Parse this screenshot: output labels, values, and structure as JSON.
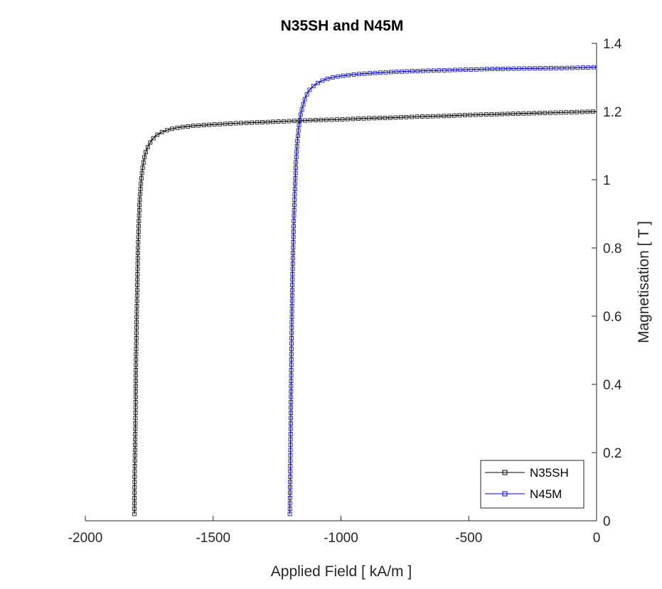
{
  "chart_data": {
    "type": "line",
    "title": "N35SH and N45M",
    "xlabel": "Applied Field [ kA/m ]",
    "ylabel": "Magnetisation [ T ]",
    "xlim": [
      -2000,
      0
    ],
    "ylim": [
      0,
      1.4
    ],
    "xticks": [
      -2000,
      -1500,
      -1000,
      -500,
      0
    ],
    "xtick_labels": [
      "-2000",
      "-1500",
      "-1000",
      "-500",
      "0"
    ],
    "yticks": [
      0,
      0.2,
      0.4,
      0.6,
      0.8,
      1,
      1.2,
      1.4
    ],
    "ytick_labels": [
      "0",
      "0.2",
      "0.4",
      "0.6",
      "0.8",
      "1",
      "1.2",
      "1.4"
    ],
    "y_axis_location": "right",
    "grid": false,
    "legend_placement": "bottom-right",
    "marker": "square",
    "series": [
      {
        "name": "N35SH",
        "color": "#000000",
        "x": [
          -1808,
          -1807,
          -1805,
          -1803,
          -1802,
          -1800,
          -1798,
          -1796,
          -1794,
          -1791,
          -1788,
          -1784,
          -1780,
          -1775,
          -1769,
          -1762,
          -1752,
          -1740,
          -1723,
          -1700,
          -1670,
          -1630,
          -1580,
          -1500,
          -1400,
          -1300,
          -1200,
          -1100,
          -1000,
          -900,
          -800,
          -700,
          -600,
          -500,
          -400,
          -300,
          -200,
          -100,
          0
        ],
        "y": [
          0.02,
          0.13,
          0.24,
          0.35,
          0.46,
          0.555,
          0.64,
          0.72,
          0.8,
          0.87,
          0.93,
          0.975,
          1.01,
          1.04,
          1.065,
          1.085,
          1.102,
          1.117,
          1.13,
          1.14,
          1.148,
          1.154,
          1.158,
          1.162,
          1.166,
          1.169,
          1.172,
          1.175,
          1.177,
          1.18,
          1.182,
          1.185,
          1.187,
          1.19,
          1.192,
          1.194,
          1.196,
          1.198,
          1.2
        ]
      },
      {
        "name": "N45M",
        "color": "#0000cc",
        "x": [
          -1200,
          -1198,
          -1196,
          -1194,
          -1192,
          -1190,
          -1187,
          -1184,
          -1180,
          -1176,
          -1171,
          -1165,
          -1158,
          -1150,
          -1140,
          -1127,
          -1112,
          -1095,
          -1075,
          -1050,
          -1020,
          -980,
          -930,
          -870,
          -800,
          -700,
          -600,
          -500,
          -400,
          -300,
          -200,
          -100,
          0
        ],
        "y": [
          0.02,
          0.165,
          0.315,
          0.475,
          0.6,
          0.705,
          0.8,
          0.89,
          0.975,
          1.05,
          1.11,
          1.155,
          1.19,
          1.215,
          1.24,
          1.26,
          1.272,
          1.282,
          1.29,
          1.297,
          1.302,
          1.306,
          1.31,
          1.313,
          1.316,
          1.319,
          1.321,
          1.323,
          1.325,
          1.326,
          1.327,
          1.328,
          1.33
        ]
      }
    ]
  }
}
